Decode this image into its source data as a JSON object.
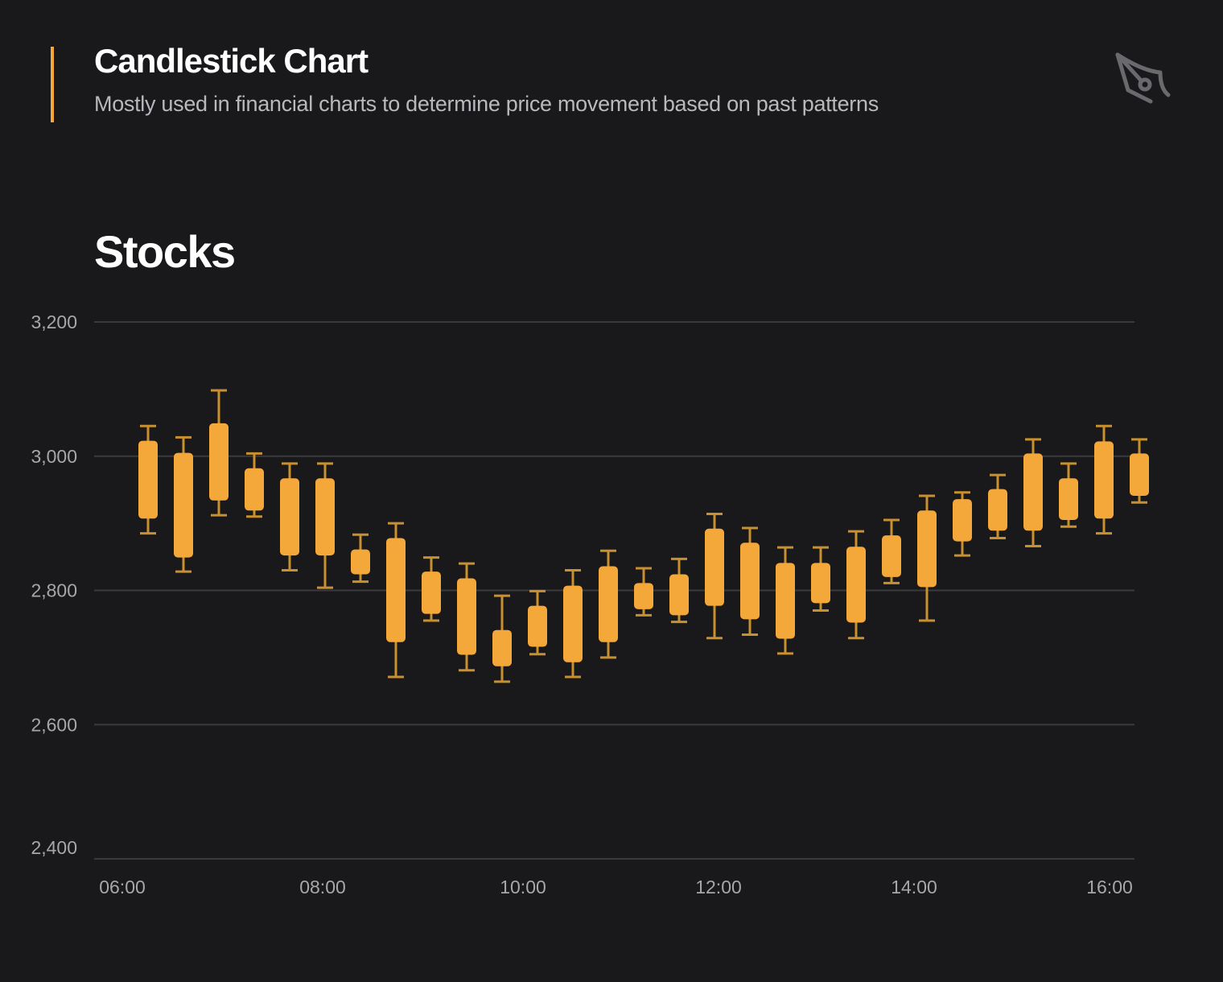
{
  "header": {
    "title": "Candlestick Chart",
    "subtitle": "Mostly used in financial charts to determine price movement based on past patterns",
    "icon": "pen-tool-icon"
  },
  "colors": {
    "background": "#19191b",
    "accent": "#f5a83a",
    "candle_body": "#f5a83a",
    "candle_wick": "#c8902f",
    "grid": "#3a3a3d",
    "tick_text": "#a7a7ab"
  },
  "chart_data": {
    "type": "candlestick",
    "title": "Stocks",
    "xlabel": "",
    "ylabel": "",
    "ylim": [
      2400,
      3200
    ],
    "y_ticks": [
      3200,
      3000,
      2800,
      2600,
      2400
    ],
    "y_tick_labels": [
      "3,200",
      "3,000",
      "2,800",
      "2,600",
      "2,400"
    ],
    "x_tick_labels": [
      "06:00",
      "08:00",
      "10:00",
      "12:00",
      "14:00",
      "16:00"
    ],
    "grid": true,
    "legend": "none",
    "candles": [
      {
        "high": 3045,
        "body_high": 3023,
        "body_low": 2907,
        "low": 2885
      },
      {
        "high": 3028,
        "body_high": 3005,
        "body_low": 2849,
        "low": 2828
      },
      {
        "high": 3098,
        "body_high": 3049,
        "body_low": 2934,
        "low": 2912
      },
      {
        "high": 3004,
        "body_high": 2982,
        "body_low": 2919,
        "low": 2910
      },
      {
        "high": 2989,
        "body_high": 2967,
        "body_low": 2852,
        "low": 2830
      },
      {
        "high": 2989,
        "body_high": 2967,
        "body_low": 2852,
        "low": 2804
      },
      {
        "high": 2883,
        "body_high": 2861,
        "body_low": 2824,
        "low": 2813
      },
      {
        "high": 2900,
        "body_high": 2878,
        "body_low": 2723,
        "low": 2671
      },
      {
        "high": 2849,
        "body_high": 2828,
        "body_low": 2765,
        "low": 2755
      },
      {
        "high": 2840,
        "body_high": 2818,
        "body_low": 2704,
        "low": 2681
      },
      {
        "high": 2792,
        "body_high": 2741,
        "body_low": 2687,
        "low": 2664
      },
      {
        "high": 2799,
        "body_high": 2777,
        "body_low": 2716,
        "low": 2705
      },
      {
        "high": 2830,
        "body_high": 2807,
        "body_low": 2693,
        "low": 2671
      },
      {
        "high": 2859,
        "body_high": 2836,
        "body_low": 2723,
        "low": 2700
      },
      {
        "high": 2833,
        "body_high": 2811,
        "body_low": 2772,
        "low": 2763
      },
      {
        "high": 2847,
        "body_high": 2824,
        "body_low": 2763,
        "low": 2753
      },
      {
        "high": 2914,
        "body_high": 2892,
        "body_low": 2777,
        "low": 2729
      },
      {
        "high": 2893,
        "body_high": 2871,
        "body_low": 2757,
        "low": 2734
      },
      {
        "high": 2864,
        "body_high": 2841,
        "body_low": 2728,
        "low": 2706
      },
      {
        "high": 2864,
        "body_high": 2841,
        "body_low": 2781,
        "low": 2770
      },
      {
        "high": 2888,
        "body_high": 2865,
        "body_low": 2752,
        "low": 2729
      },
      {
        "high": 2905,
        "body_high": 2882,
        "body_low": 2820,
        "low": 2811
      },
      {
        "high": 2941,
        "body_high": 2919,
        "body_low": 2805,
        "low": 2755
      },
      {
        "high": 2946,
        "body_high": 2936,
        "body_low": 2873,
        "low": 2852
      },
      {
        "high": 2972,
        "body_high": 2951,
        "body_low": 2889,
        "low": 2878
      },
      {
        "high": 3025,
        "body_high": 3004,
        "body_low": 2889,
        "low": 2866
      },
      {
        "high": 2989,
        "body_high": 2967,
        "body_low": 2905,
        "low": 2895
      },
      {
        "high": 3045,
        "body_high": 3022,
        "body_low": 2907,
        "low": 2885
      },
      {
        "high": 3025,
        "body_high": 3004,
        "body_low": 2941,
        "low": 2931
      }
    ]
  }
}
